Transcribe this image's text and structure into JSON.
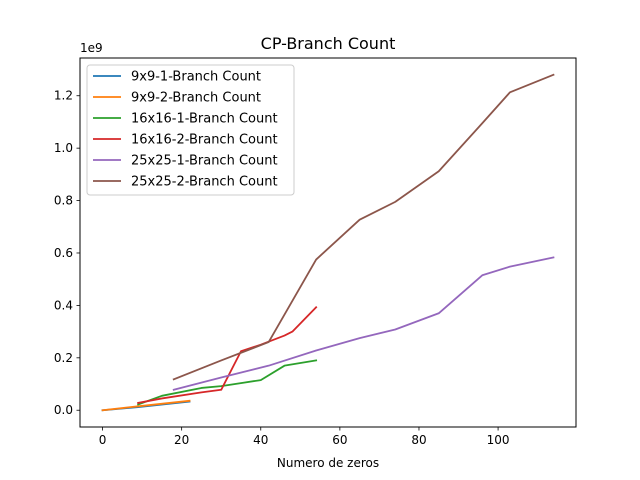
{
  "chart_data": {
    "type": "line",
    "title": "CP-Branch Count",
    "xlabel": "Numero de zeros",
    "ylabel": "",
    "offset_label": "1e9",
    "xlim": [
      -5.7,
      119.7
    ],
    "ylim": [
      -0.064,
      1.344
    ],
    "xticks": [
      0,
      20,
      40,
      60,
      80,
      100
    ],
    "xtick_labels": [
      "0",
      "20",
      "40",
      "60",
      "80",
      "100"
    ],
    "yticks": [
      0.0,
      0.2,
      0.4,
      0.6,
      0.8,
      1.0,
      1.2
    ],
    "ytick_labels": [
      "0.0",
      "0.2",
      "0.4",
      "0.6",
      "0.8",
      "1.0",
      "1.2"
    ],
    "grid": false,
    "legend_position": "upper left",
    "series": [
      {
        "name": "9x9-1-Branch Count",
        "color": "#1f77b4",
        "x": [
          0,
          9,
          22
        ],
        "y": [
          0.0,
          0.012,
          0.033
        ]
      },
      {
        "name": "9x9-2-Branch Count",
        "color": "#ff7f0e",
        "x": [
          0,
          9,
          22
        ],
        "y": [
          0.0,
          0.015,
          0.036
        ]
      },
      {
        "name": "16x16-1-Branch Count",
        "color": "#2ca02c",
        "x": [
          9,
          15,
          25,
          30,
          40,
          46,
          54
        ],
        "y": [
          0.022,
          0.055,
          0.085,
          0.092,
          0.115,
          0.17,
          0.19
        ]
      },
      {
        "name": "16x16-2-Branch Count",
        "color": "#d62728",
        "x": [
          9,
          15,
          25,
          30,
          35,
          40,
          46,
          48,
          54
        ],
        "y": [
          0.028,
          0.045,
          0.068,
          0.078,
          0.225,
          0.25,
          0.285,
          0.3,
          0.393
        ]
      },
      {
        "name": "25x25-1-Branch Count",
        "color": "#9467bd",
        "x": [
          18,
          30,
          42,
          54,
          65,
          74,
          85,
          96,
          103,
          114
        ],
        "y": [
          0.078,
          0.125,
          0.17,
          0.228,
          0.275,
          0.308,
          0.37,
          0.515,
          0.548,
          0.583
        ]
      },
      {
        "name": "25x25-2-Branch Count",
        "color": "#8c564b",
        "x": [
          18,
          30,
          42,
          54,
          65,
          74,
          85,
          96,
          103,
          114
        ],
        "y": [
          0.118,
          0.19,
          0.26,
          0.575,
          0.727,
          0.795,
          0.912,
          1.095,
          1.213,
          1.28
        ]
      }
    ]
  }
}
